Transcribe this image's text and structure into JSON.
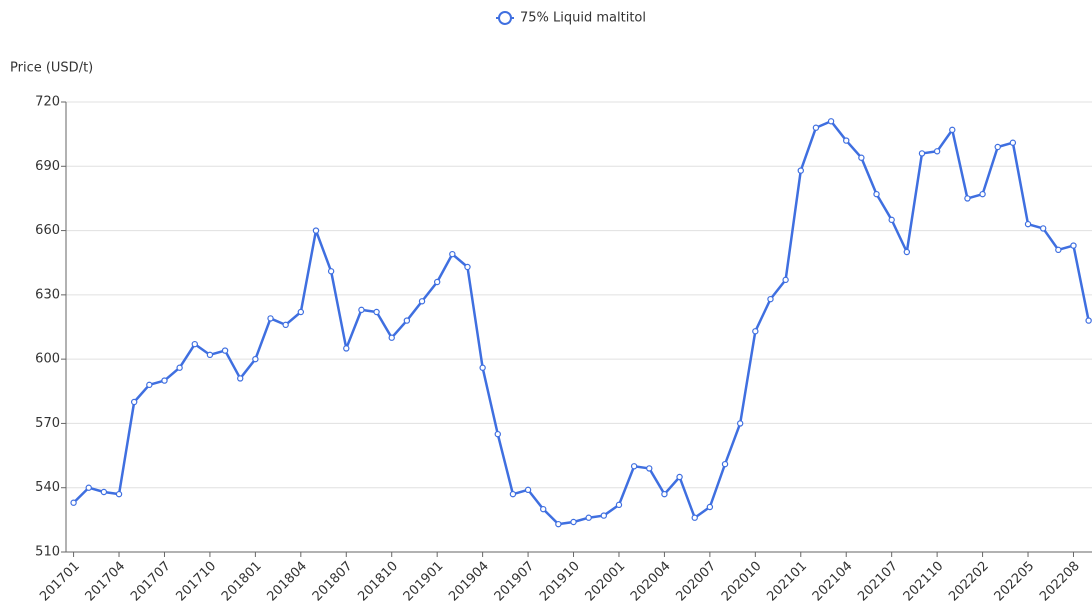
{
  "chart_data": {
    "type": "line",
    "y_label": "Price (USD/t)",
    "categories": [
      "201701",
      null,
      null,
      "201704",
      null,
      null,
      "201707",
      null,
      null,
      "201710",
      null,
      null,
      "201801",
      null,
      null,
      "201804",
      null,
      null,
      "201807",
      null,
      null,
      "201810",
      null,
      null,
      "201901",
      null,
      null,
      "201904",
      null,
      null,
      "201907",
      null,
      null,
      "201910",
      null,
      null,
      "202001",
      null,
      null,
      "202004",
      null,
      null,
      "202007",
      null,
      null,
      "202010",
      null,
      null,
      "202101",
      null,
      null,
      "202104",
      null,
      null,
      "202107",
      null,
      null,
      "202110",
      null,
      null,
      "202202",
      null,
      null,
      "202205",
      null,
      null,
      "202208",
      null
    ],
    "series": [
      {
        "name": "75% Liquid maltitol",
        "color": "#3f6fe0",
        "values": [
          533,
          540,
          538,
          537,
          580,
          588,
          590,
          596,
          607,
          602,
          604,
          591,
          600,
          619,
          616,
          622,
          660,
          641,
          605,
          623,
          622,
          610,
          618,
          627,
          636,
          649,
          643,
          596,
          565,
          537,
          539,
          530,
          523,
          524,
          526,
          527,
          532,
          550,
          549,
          537,
          545,
          526,
          531,
          551,
          570,
          613,
          628,
          637,
          688,
          708,
          711,
          702,
          694,
          677,
          665,
          650,
          696,
          697,
          707,
          675,
          677,
          699,
          701,
          663,
          661,
          651,
          653,
          618
        ]
      }
    ],
    "ylim": [
      510,
      720
    ],
    "yticks": [
      510,
      540,
      570,
      600,
      630,
      660,
      690,
      720
    ],
    "grid": true
  }
}
